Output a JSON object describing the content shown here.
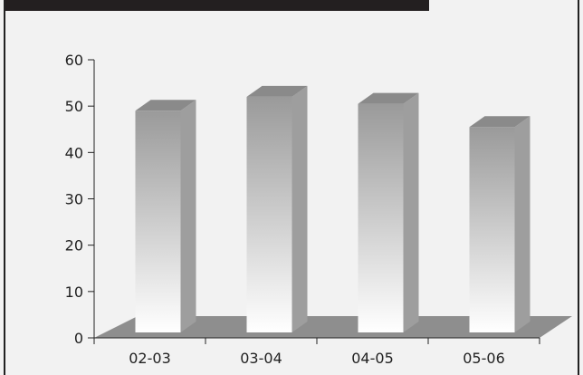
{
  "chart_data": {
    "type": "bar",
    "categories": [
      "02-03",
      "03-04",
      "04-05",
      "05-06"
    ],
    "values": [
      49,
      52,
      50.5,
      45.5
    ],
    "ylim": [
      0,
      60
    ],
    "yticks": [
      0,
      10,
      20,
      30,
      40,
      50,
      60
    ],
    "title": "",
    "xlabel": "",
    "ylabel": "",
    "grid": false,
    "style": "3d-column"
  },
  "colors": {
    "bar_front_top": "#9a9a9a",
    "bar_front_bottom": "#ffffff",
    "bar_side": "#9e9e9e",
    "bar_top": "#8a8a8a",
    "floor": "#8e8e8e",
    "axis": "#222222",
    "header": "#231f20"
  }
}
